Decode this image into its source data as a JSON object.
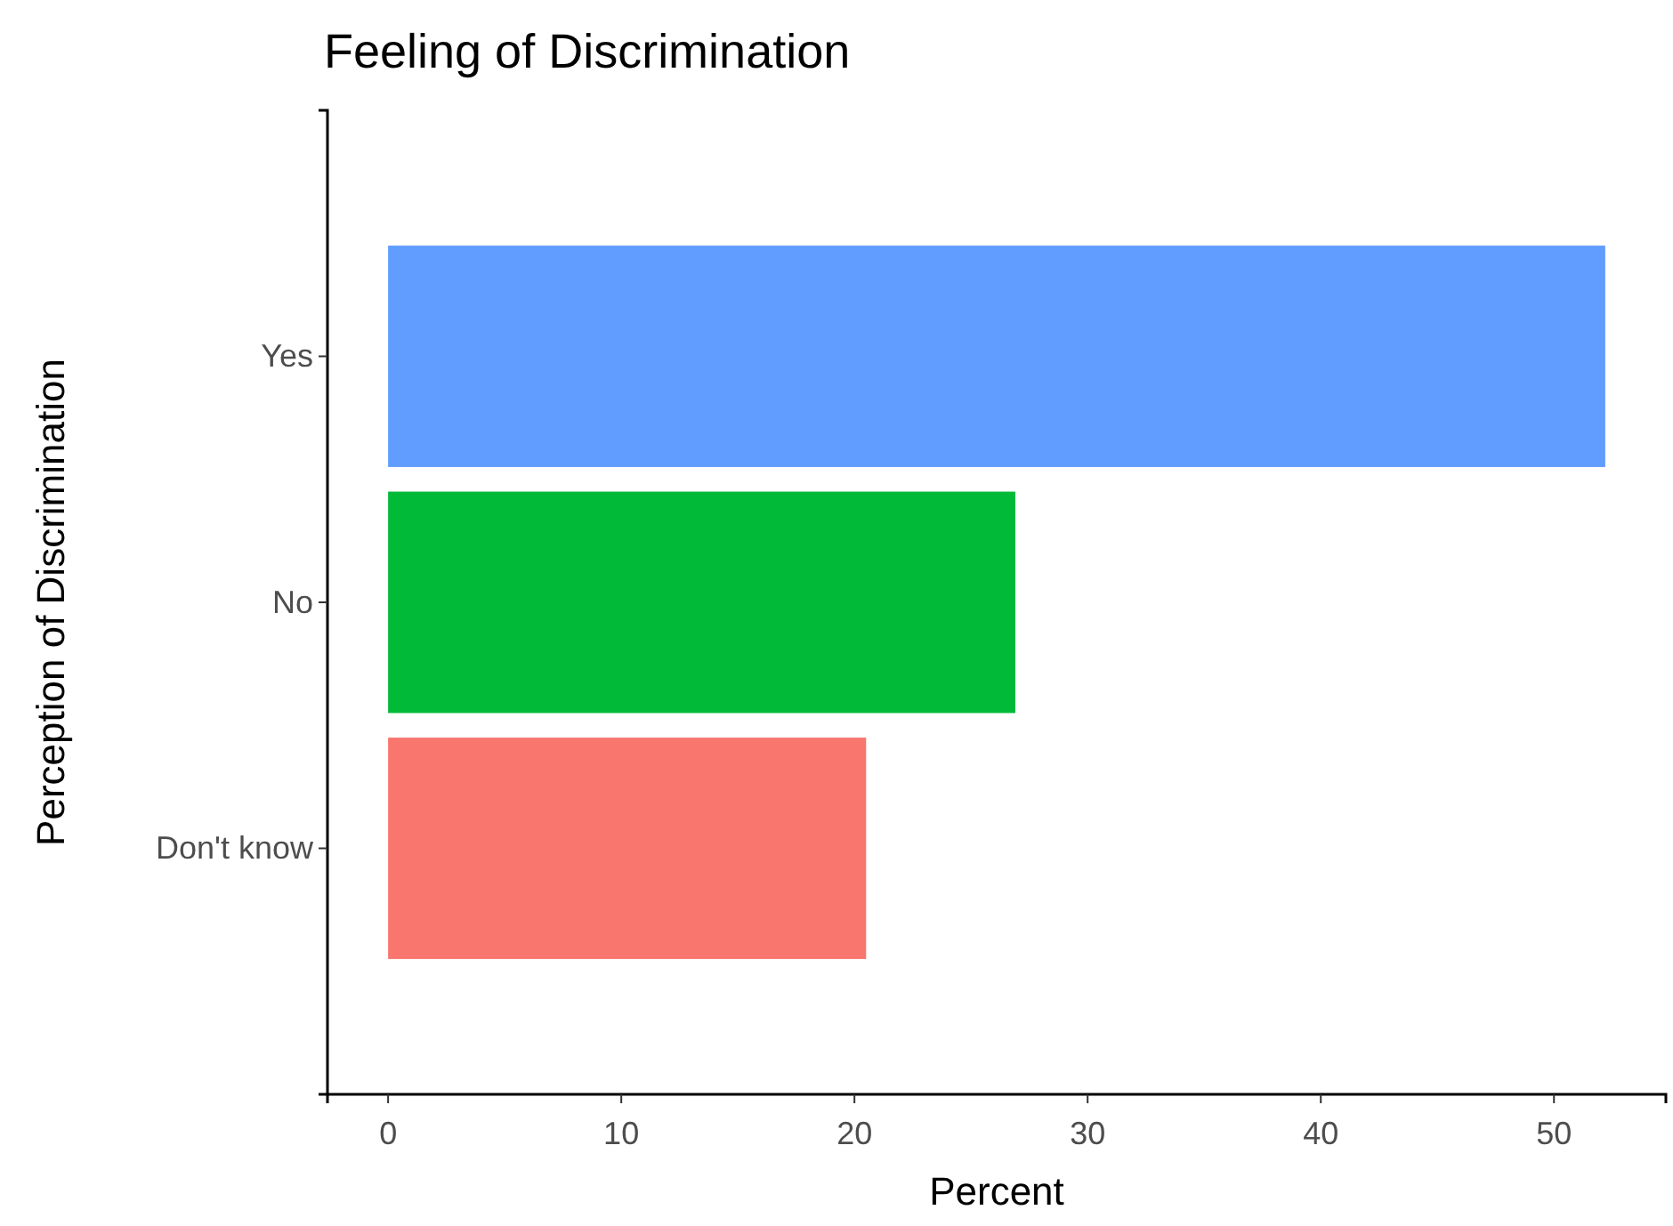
{
  "chart_data": {
    "type": "bar",
    "title": "Feeling of Discrimination",
    "xlabel": "Percent",
    "ylabel": "Perception of Discrimination",
    "orientation": "horizontal",
    "categories": [
      "Yes",
      "No",
      "Don't know"
    ],
    "values": [
      52.2,
      26.9,
      20.5
    ],
    "colors": [
      "#619cff",
      "#00ba38",
      "#f8766d"
    ],
    "xlim": [
      -2.6,
      54.8
    ],
    "xticks": [
      0,
      10,
      20,
      30,
      40,
      50
    ],
    "grid": false
  }
}
